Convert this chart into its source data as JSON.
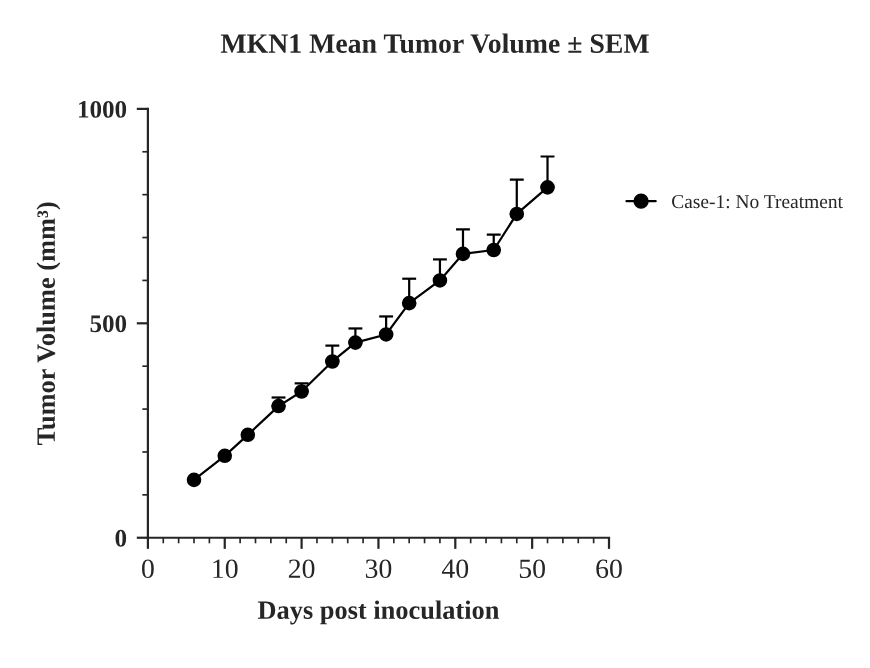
{
  "chart_data": {
    "type": "line",
    "title": "MKN1 Mean Tumor Volume ± SEM",
    "xlabel": "Days post inoculation",
    "ylabel": "Tumor Volume (mm³)",
    "x": [
      6,
      10,
      13,
      17,
      20,
      24,
      27,
      31,
      34,
      38,
      41,
      45,
      48,
      52
    ],
    "series": [
      {
        "name": "Case-1: No Treatment",
        "color": "#000000",
        "values": [
          135,
          191,
          240,
          307,
          341,
          411,
          455,
          474,
          547,
          600,
          662,
          671,
          755,
          817
        ],
        "errors": [
          null,
          null,
          null,
          [
            307,
            327
          ],
          [
            341,
            360
          ],
          [
            411,
            448
          ],
          [
            455,
            488
          ],
          [
            474,
            516
          ],
          [
            547,
            604
          ],
          [
            600,
            649
          ],
          [
            662,
            719
          ],
          [
            671,
            707
          ],
          [
            755,
            835
          ],
          [
            817,
            889
          ]
        ]
      }
    ],
    "xlim": [
      0,
      60
    ],
    "xticks": [
      0,
      10,
      20,
      30,
      40,
      50,
      60
    ],
    "ylim": [
      0,
      1000
    ],
    "yticks": [
      0,
      500,
      1000
    ],
    "marker": "circle",
    "line_style": "solid",
    "legend": "right",
    "grid": false
  }
}
